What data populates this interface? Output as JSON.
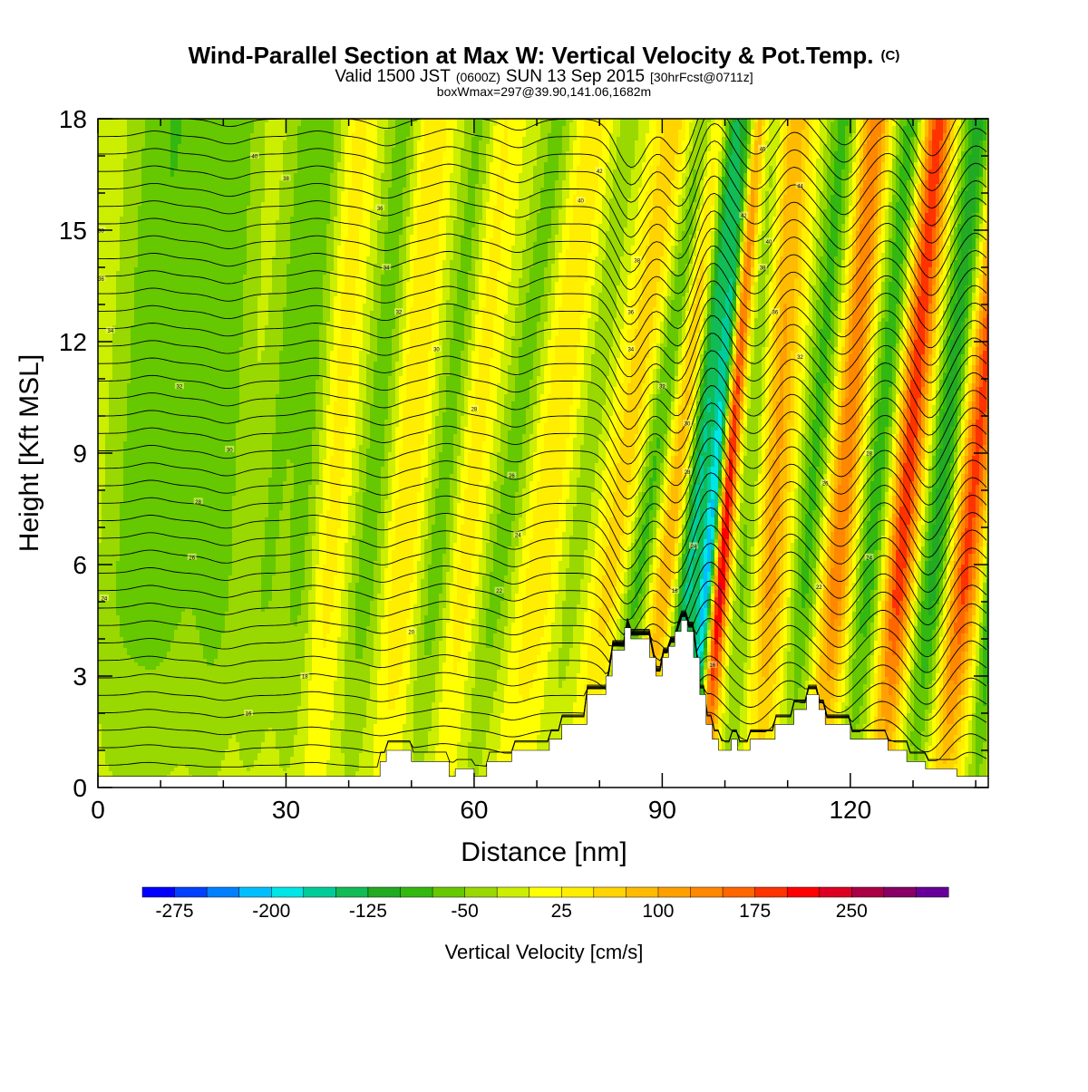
{
  "chart_data": {
    "type": "heatmap",
    "title": "Wind-Parallel Section at Max W: Vertical Velocity & Pot.Temp.",
    "title_mark": "(C)",
    "subtitle": {
      "prefix": "Valid 1500 JST",
      "utc": "(0600Z)",
      "date": "SUN 13 Sep 2015",
      "forecast": "[30hrFcst@0711z]"
    },
    "box_info": "boxWmax=297@39.90,141.06,1682m",
    "xlabel": "Distance [nm]",
    "ylabel": "Height [Kft MSL]",
    "xlim": [
      0,
      142
    ],
    "ylim": [
      0,
      18
    ],
    "x_ticks": [
      "0",
      "30",
      "60",
      "90",
      "120"
    ],
    "y_ticks": [
      "0",
      "3",
      "6",
      "9",
      "12",
      "15",
      "18"
    ],
    "grid": false,
    "colorbar": {
      "label": "Vertical Velocity [cm/s]",
      "tick_labels": [
        "-275",
        "-200",
        "-125",
        "-50",
        "25",
        "100",
        "175",
        "250"
      ],
      "colors": [
        "#0000ff",
        "#0040ff",
        "#0080ff",
        "#00bfff",
        "#00e5e5",
        "#00cc99",
        "#11bb55",
        "#22aa22",
        "#33b811",
        "#66c800",
        "#99d800",
        "#ccee00",
        "#ffff00",
        "#ffee00",
        "#ffd400",
        "#ffbb00",
        "#ffa000",
        "#ff8800",
        "#ff6600",
        "#ff3300",
        "#ff0000",
        "#dd0022",
        "#aa0044",
        "#880066",
        "#660099"
      ]
    },
    "terrain_profile": {
      "x": [
        0,
        45,
        45,
        46,
        46,
        50,
        50,
        56,
        56,
        57,
        57,
        60,
        60,
        62,
        62,
        66,
        66,
        72,
        72,
        74,
        74,
        78,
        78,
        81,
        81,
        82,
        82,
        84,
        84,
        85,
        85,
        88,
        88,
        89,
        89,
        90,
        90,
        91,
        91,
        92,
        92,
        93,
        93,
        94,
        94,
        95,
        95,
        96,
        96,
        97,
        97,
        98,
        98,
        99,
        99,
        100,
        100,
        101,
        101,
        102,
        102,
        104,
        104,
        108,
        108,
        111,
        111,
        113,
        113,
        115,
        115,
        116,
        116,
        120,
        120,
        124,
        124,
        126,
        126,
        129,
        129,
        132,
        132,
        134,
        134,
        137,
        137,
        140,
        140,
        141,
        141,
        142
      ],
      "height_kft": [
        0.3,
        0.3,
        0.7,
        0.7,
        1.0,
        1.0,
        0.7,
        0.7,
        0.3,
        0.3,
        0.5,
        0.5,
        0.3,
        0.3,
        0.7,
        0.7,
        1.0,
        1.0,
        1.3,
        1.3,
        1.7,
        1.7,
        2.5,
        2.5,
        3.0,
        3.0,
        3.7,
        3.7,
        4.3,
        4.3,
        4.0,
        4.0,
        3.5,
        3.5,
        3.0,
        3.0,
        3.5,
        3.5,
        3.8,
        3.8,
        4.2,
        4.2,
        4.5,
        4.5,
        4.2,
        4.2,
        3.5,
        3.5,
        2.5,
        2.5,
        1.7,
        1.7,
        1.3,
        1.3,
        1.0,
        1.0,
        1.0,
        1.0,
        1.3,
        1.3,
        1.0,
        1.0,
        1.3,
        1.3,
        1.7,
        1.7,
        2.1,
        2.1,
        2.5,
        2.5,
        2.1,
        2.1,
        1.7,
        1.7,
        1.3,
        1.3,
        1.3,
        1.3,
        1.0,
        1.0,
        0.7,
        0.7,
        0.5,
        0.5,
        0.5,
        0.5,
        0.3,
        0.3,
        0.3,
        0.3,
        0.3,
        0.3
      ]
    },
    "velocity_features": [
      {
        "x": 3,
        "w": 5,
        "v": -45,
        "tilt": 0.4
      },
      {
        "x": 10,
        "w": 5,
        "v": -50,
        "tilt": 0.3
      },
      {
        "x": 18,
        "w": 4,
        "v": -55,
        "tilt": 0.3
      },
      {
        "x": 25,
        "w": 3,
        "v": -45,
        "tilt": 0.5
      },
      {
        "x": 31,
        "w": 3,
        "v": -55,
        "tilt": 0.4
      },
      {
        "x": 35,
        "w": 3,
        "v": 45,
        "tilt": 0.4
      },
      {
        "x": 41,
        "w": 3,
        "v": -60,
        "tilt": 0.5
      },
      {
        "x": 47,
        "w": 3,
        "v": 55,
        "tilt": 0.4
      },
      {
        "x": 52,
        "w": 3,
        "v": -70,
        "tilt": 0.6
      },
      {
        "x": 56,
        "w": 3,
        "v": 55,
        "tilt": 0.5
      },
      {
        "x": 61,
        "w": 3,
        "v": -60,
        "tilt": 0.8
      },
      {
        "x": 68,
        "w": 4,
        "v": 50,
        "tilt": 0.7
      },
      {
        "x": 73,
        "w": 3,
        "v": -40,
        "tilt": 0.7
      },
      {
        "x": 79,
        "w": 3,
        "v": 70,
        "tilt": 0.8
      },
      {
        "x": 83,
        "w": 2.5,
        "v": -90,
        "tilt": 0.9
      },
      {
        "x": 88,
        "w": 2.5,
        "v": 110,
        "tilt": 0.7
      },
      {
        "x": 92,
        "w": 2,
        "v": -160,
        "tilt": 0.6
      },
      {
        "x": 95.5,
        "w": 1.4,
        "v": -270,
        "tilt": 0.55
      },
      {
        "x": 97.5,
        "w": 1.6,
        "v": 290,
        "tilt": 0.45
      },
      {
        "x": 102,
        "w": 2.5,
        "v": -70,
        "tilt": 0.4
      },
      {
        "x": 106,
        "w": 3,
        "v": 120,
        "tilt": 0.3
      },
      {
        "x": 111,
        "w": 2.5,
        "v": -80,
        "tilt": 0.5
      },
      {
        "x": 116,
        "w": 2.5,
        "v": 150,
        "tilt": 0.5
      },
      {
        "x": 121,
        "w": 2.5,
        "v": -90,
        "tilt": 0.55
      },
      {
        "x": 126,
        "w": 2.5,
        "v": 200,
        "tilt": 0.5
      },
      {
        "x": 131,
        "w": 2.5,
        "v": -110,
        "tilt": 0.6
      },
      {
        "x": 136,
        "w": 2.5,
        "v": 190,
        "tilt": 0.6
      },
      {
        "x": 141,
        "w": 1.5,
        "v": -120,
        "tilt": 0.5
      }
    ],
    "theta_contours": {
      "count": 38,
      "first_height_kft": 0.6,
      "spacing_kft": 0.47,
      "wave_amplitude_kft": [
        {
          "x": 8,
          "a": 0.15
        },
        {
          "x": 20,
          "a": -0.2
        },
        {
          "x": 34,
          "a": 0.15
        },
        {
          "x": 45,
          "a": -0.25
        },
        {
          "x": 55,
          "a": 0.2
        },
        {
          "x": 66,
          "a": -0.3
        },
        {
          "x": 84,
          "a": -1.3
        },
        {
          "x": 92,
          "a": -1.0
        },
        {
          "x": 97,
          "a": 0.9
        },
        {
          "x": 104,
          "a": -0.5
        },
        {
          "x": 110,
          "a": 0.6
        },
        {
          "x": 118,
          "a": -0.7
        },
        {
          "x": 125,
          "a": 0.5
        },
        {
          "x": 132,
          "a": -1.0
        },
        {
          "x": 139,
          "a": 0.7
        }
      ],
      "labels": [
        {
          "x": 0.5,
          "y": 15.0,
          "t": "38"
        },
        {
          "x": 0.5,
          "y": 13.7,
          "t": "36"
        },
        {
          "x": 2,
          "y": 12.3,
          "t": "34"
        },
        {
          "x": 13,
          "y": 10.8,
          "t": "32"
        },
        {
          "x": 21,
          "y": 9.1,
          "t": "30"
        },
        {
          "x": 16,
          "y": 7.7,
          "t": "28"
        },
        {
          "x": 15,
          "y": 6.2,
          "t": "26"
        },
        {
          "x": 1,
          "y": 5.1,
          "t": "24"
        },
        {
          "x": 25,
          "y": 17.0,
          "t": "40"
        },
        {
          "x": 30,
          "y": 16.4,
          "t": "38"
        },
        {
          "x": 45,
          "y": 15.6,
          "t": "36"
        },
        {
          "x": 46,
          "y": 14.0,
          "t": "34"
        },
        {
          "x": 48,
          "y": 12.8,
          "t": "32"
        },
        {
          "x": 54,
          "y": 11.8,
          "t": "30"
        },
        {
          "x": 60,
          "y": 10.2,
          "t": "28"
        },
        {
          "x": 66,
          "y": 8.4,
          "t": "26"
        },
        {
          "x": 67,
          "y": 6.8,
          "t": "24"
        },
        {
          "x": 64,
          "y": 5.3,
          "t": "22"
        },
        {
          "x": 50,
          "y": 4.2,
          "t": "20"
        },
        {
          "x": 33,
          "y": 3.0,
          "t": "18"
        },
        {
          "x": 24,
          "y": 2.0,
          "t": "16"
        },
        {
          "x": 80,
          "y": 16.6,
          "t": "42"
        },
        {
          "x": 77,
          "y": 15.8,
          "t": "40"
        },
        {
          "x": 86,
          "y": 14.2,
          "t": "38"
        },
        {
          "x": 85,
          "y": 12.8,
          "t": "36"
        },
        {
          "x": 85,
          "y": 11.8,
          "t": "34"
        },
        {
          "x": 90,
          "y": 10.8,
          "t": "32"
        },
        {
          "x": 94,
          "y": 9.8,
          "t": "30"
        },
        {
          "x": 94,
          "y": 8.5,
          "t": "28"
        },
        {
          "x": 95,
          "y": 6.5,
          "t": "24"
        },
        {
          "x": 92,
          "y": 5.3,
          "t": "18"
        },
        {
          "x": 98,
          "y": 3.3,
          "t": "16"
        },
        {
          "x": 106,
          "y": 17.2,
          "t": "46"
        },
        {
          "x": 112,
          "y": 16.2,
          "t": "44"
        },
        {
          "x": 103,
          "y": 15.4,
          "t": "42"
        },
        {
          "x": 107,
          "y": 14.7,
          "t": "40"
        },
        {
          "x": 106,
          "y": 14.0,
          "t": "38"
        },
        {
          "x": 108,
          "y": 12.8,
          "t": "36"
        },
        {
          "x": 112,
          "y": 11.6,
          "t": "32"
        },
        {
          "x": 123,
          "y": 9.0,
          "t": "28"
        },
        {
          "x": 116,
          "y": 8.2,
          "t": "26"
        },
        {
          "x": 123,
          "y": 6.2,
          "t": "24"
        },
        {
          "x": 115,
          "y": 5.4,
          "t": "22"
        }
      ]
    }
  }
}
